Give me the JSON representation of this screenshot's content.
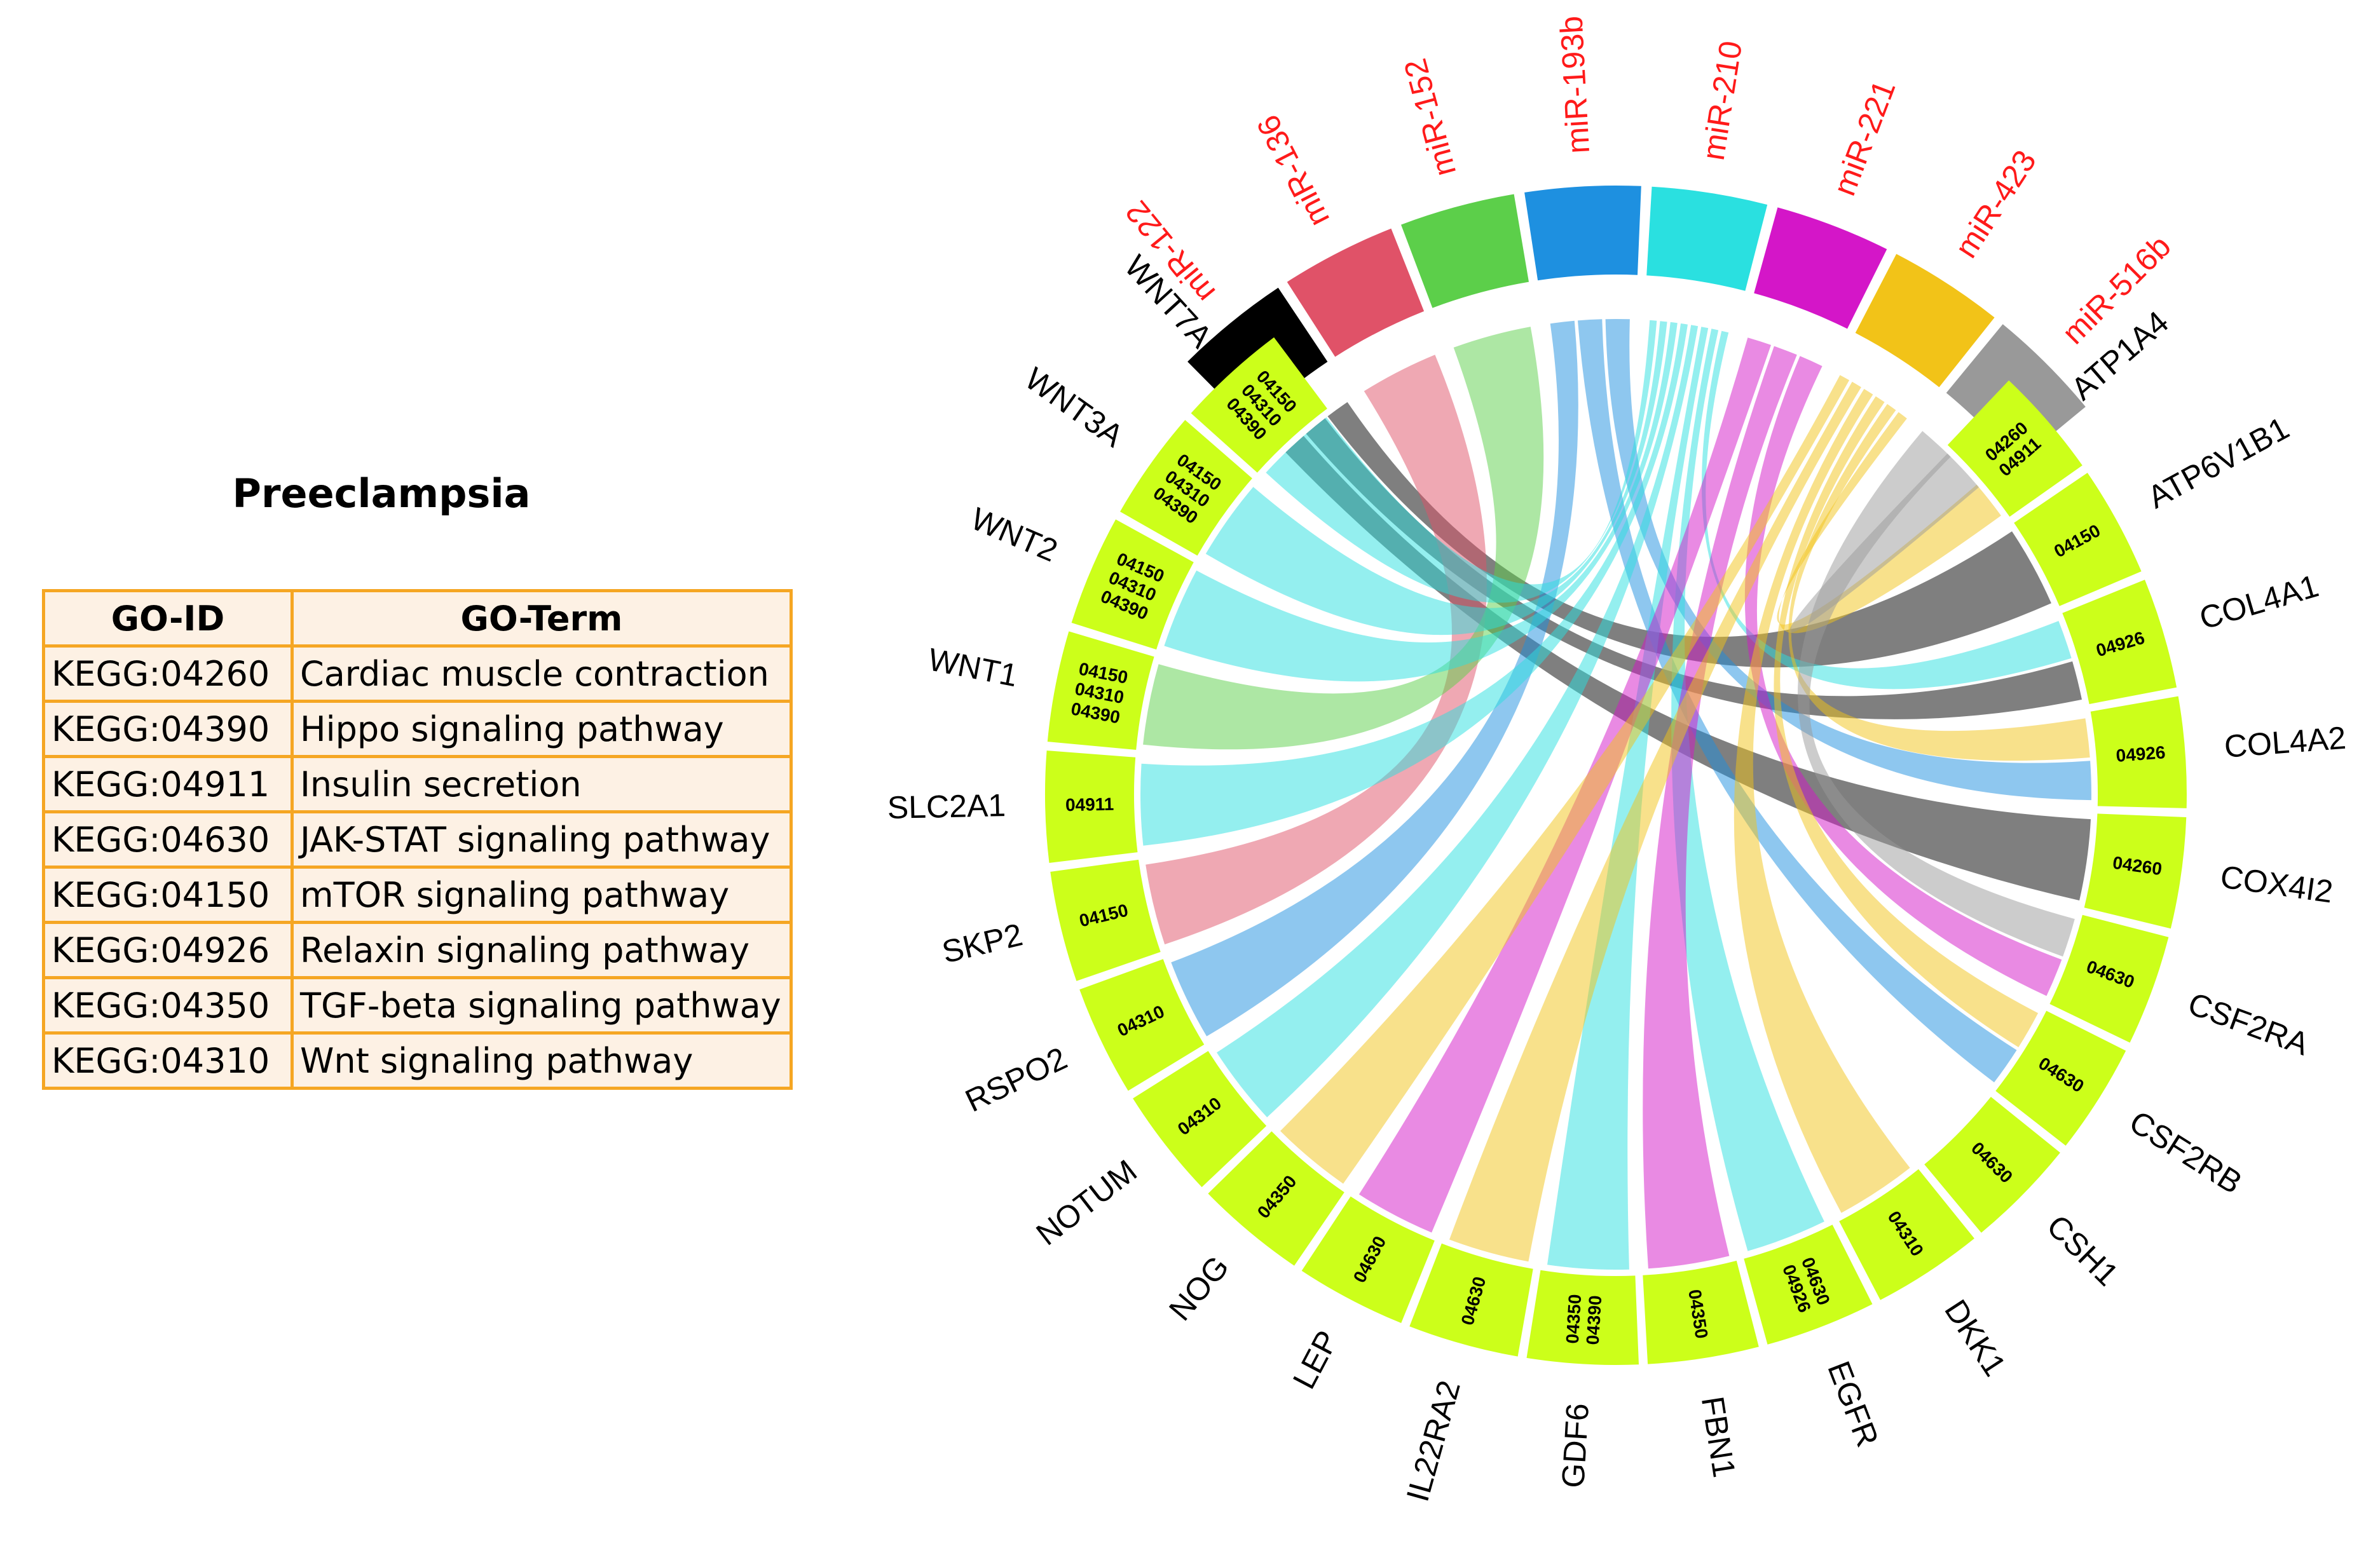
{
  "title": "Preeclampsia",
  "table": {
    "headers": [
      "GO-ID",
      "GO-Term"
    ],
    "rows": [
      [
        "KEGG:04260",
        "Cardiac muscle contraction"
      ],
      [
        "KEGG:04390",
        "Hippo signaling pathway"
      ],
      [
        "KEGG:04911",
        "Insulin secretion"
      ],
      [
        "KEGG:04630",
        "JAK-STAT signaling pathway"
      ],
      [
        "KEGG:04150",
        "mTOR signaling pathway"
      ],
      [
        "KEGG:04926",
        "Relaxin signaling pathway"
      ],
      [
        "KEGG:04350",
        "TGF-beta signaling pathway"
      ],
      [
        "KEGG:04310",
        "Wnt signaling pathway"
      ]
    ]
  },
  "chart_data": {
    "type": "chord",
    "title": "Preeclampsia",
    "mirnas": [
      {
        "name": "miR-122",
        "color": "#000000"
      },
      {
        "name": "miR-136",
        "color": "#e05268"
      },
      {
        "name": "miR-152",
        "color": "#5ccf4a"
      },
      {
        "name": "miR-193b",
        "color": "#1e90e0"
      },
      {
        "name": "miR-210",
        "color": "#2ae0e0"
      },
      {
        "name": "miR-221",
        "color": "#d416c8"
      },
      {
        "name": "miR-423",
        "color": "#f2c318"
      },
      {
        "name": "miR-516b",
        "color": "#999999"
      }
    ],
    "genes": [
      {
        "name": "ATP1A4",
        "codes": [
          "04260",
          "04911"
        ]
      },
      {
        "name": "ATP6V1B1",
        "codes": [
          "04150"
        ]
      },
      {
        "name": "COL4A1",
        "codes": [
          "04926"
        ]
      },
      {
        "name": "COL4A2",
        "codes": [
          "04926"
        ]
      },
      {
        "name": "COX4I2",
        "codes": [
          "04260"
        ]
      },
      {
        "name": "CSF2RA",
        "codes": [
          "04630"
        ]
      },
      {
        "name": "CSF2RB",
        "codes": [
          "04630"
        ]
      },
      {
        "name": "CSH1",
        "codes": [
          "04630"
        ]
      },
      {
        "name": "DKK1",
        "codes": [
          "04310"
        ]
      },
      {
        "name": "EGFR",
        "codes": [
          "04630",
          "04926"
        ]
      },
      {
        "name": "FBN1",
        "codes": [
          "04350"
        ]
      },
      {
        "name": "GDF6",
        "codes": [
          "04350",
          "04390"
        ]
      },
      {
        "name": "IL22RA2",
        "codes": [
          "04630"
        ]
      },
      {
        "name": "LEP",
        "codes": [
          "04630"
        ]
      },
      {
        "name": "NOG",
        "codes": [
          "04350"
        ]
      },
      {
        "name": "NOTUM",
        "codes": [
          "04310"
        ]
      },
      {
        "name": "RSPO2",
        "codes": [
          "04310"
        ]
      },
      {
        "name": "SKP2",
        "codes": [
          "04150"
        ]
      },
      {
        "name": "SLC2A1",
        "codes": [
          "04911"
        ]
      },
      {
        "name": "WNT1",
        "codes": [
          "04150",
          "04310",
          "04390"
        ]
      },
      {
        "name": "WNT2",
        "codes": [
          "04150",
          "04310",
          "04390"
        ]
      },
      {
        "name": "WNT3A",
        "codes": [
          "04150",
          "04310",
          "04390"
        ]
      },
      {
        "name": "WNT7A",
        "codes": [
          "04150",
          "04310",
          "04390"
        ]
      }
    ],
    "links": [
      {
        "mirna": "miR-122",
        "gene": "ATP6V1B1"
      },
      {
        "mirna": "miR-122",
        "gene": "COL4A1"
      },
      {
        "mirna": "miR-122",
        "gene": "COX4I2"
      },
      {
        "mirna": "miR-136",
        "gene": "SKP2"
      },
      {
        "mirna": "miR-152",
        "gene": "WNT1"
      },
      {
        "mirna": "miR-193b",
        "gene": "COL4A2"
      },
      {
        "mirna": "miR-193b",
        "gene": "CSF2RB"
      },
      {
        "mirna": "miR-193b",
        "gene": "RSPO2"
      },
      {
        "mirna": "miR-210",
        "gene": "WNT7A"
      },
      {
        "mirna": "miR-210",
        "gene": "WNT3A"
      },
      {
        "mirna": "miR-210",
        "gene": "WNT2"
      },
      {
        "mirna": "miR-210",
        "gene": "SLC2A1"
      },
      {
        "mirna": "miR-210",
        "gene": "COL4A1"
      },
      {
        "mirna": "miR-210",
        "gene": "NOTUM"
      },
      {
        "mirna": "miR-210",
        "gene": "GDF6"
      },
      {
        "mirna": "miR-210",
        "gene": "EGFR"
      },
      {
        "mirna": "miR-221",
        "gene": "CSF2RA"
      },
      {
        "mirna": "miR-221",
        "gene": "LEP"
      },
      {
        "mirna": "miR-221",
        "gene": "FBN1"
      },
      {
        "mirna": "miR-423",
        "gene": "ATP1A4"
      },
      {
        "mirna": "miR-423",
        "gene": "COL4A2"
      },
      {
        "mirna": "miR-423",
        "gene": "CSF2RB"
      },
      {
        "mirna": "miR-423",
        "gene": "DKK1"
      },
      {
        "mirna": "miR-423",
        "gene": "IL22RA2"
      },
      {
        "mirna": "miR-423",
        "gene": "NOG"
      },
      {
        "mirna": "miR-516b",
        "gene": "ATP1A4"
      },
      {
        "mirna": "miR-516b",
        "gene": "CSF2RA"
      }
    ]
  }
}
